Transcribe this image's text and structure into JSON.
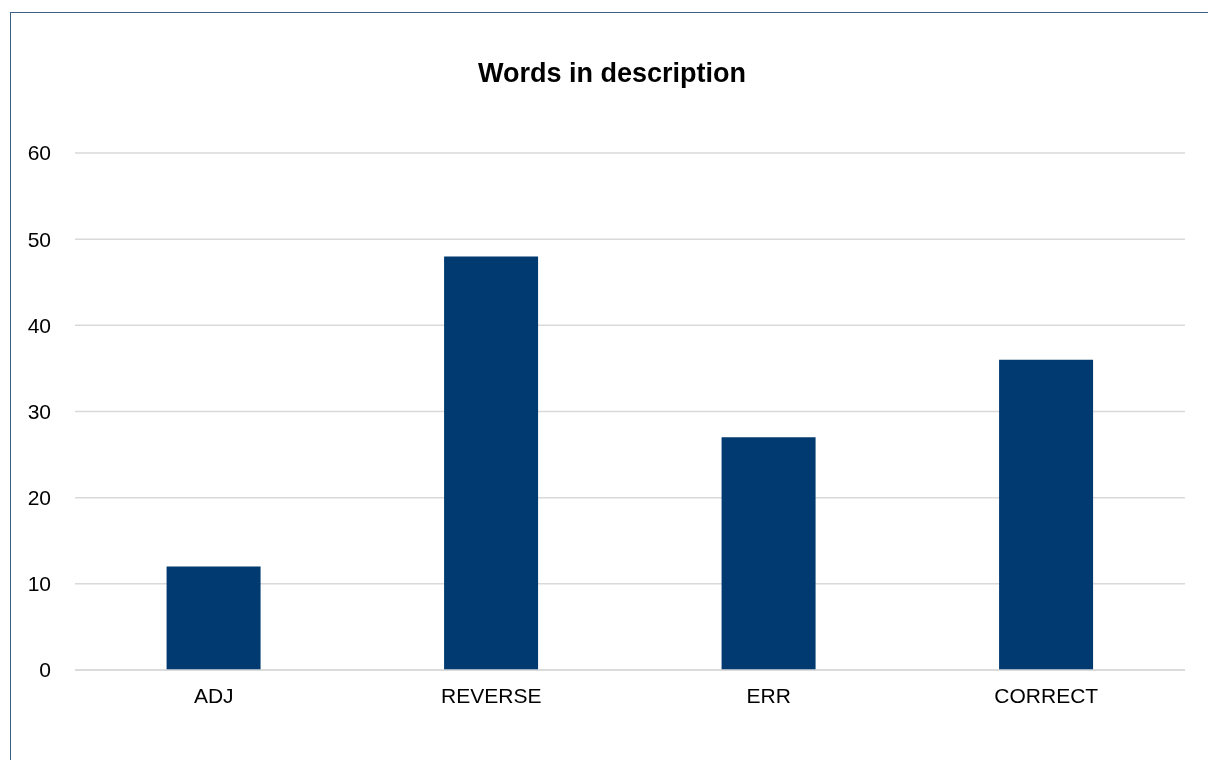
{
  "chart_data": {
    "type": "bar",
    "title": "Words in description",
    "categories": [
      "ADJ",
      "REVERSE",
      "ERR",
      "CORRECT"
    ],
    "values": [
      12,
      48,
      27,
      36
    ],
    "color": "#003a70",
    "ylim": [
      0,
      60
    ],
    "yticks": [
      0,
      10,
      20,
      30,
      40,
      50,
      60
    ],
    "grid": "y"
  }
}
